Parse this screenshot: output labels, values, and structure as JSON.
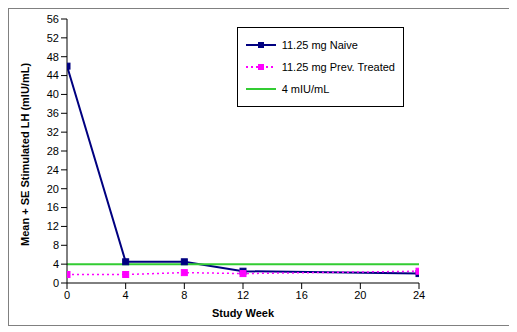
{
  "chart_data": {
    "type": "line",
    "x": [
      0,
      4,
      8,
      12,
      24
    ],
    "xlabel": "Study Week",
    "ylabel": "Mean + SE Stimulated LH (mIU/mL)",
    "xlim": [
      0,
      24
    ],
    "xticks": [
      0,
      4,
      8,
      12,
      16,
      20,
      24
    ],
    "ylim": [
      0,
      56
    ],
    "yticks": [
      0,
      4,
      8,
      12,
      16,
      20,
      24,
      28,
      32,
      36,
      40,
      44,
      48,
      52,
      56
    ],
    "grid": false,
    "legend": "upper right",
    "series": [
      {
        "name": "11.25 mg Naive",
        "color": "#000080",
        "marker": "square",
        "line_style": "solid",
        "values": [
          46,
          4.5,
          4.5,
          2.5,
          2.0
        ]
      },
      {
        "name": "11.25 mg Prev. Treated",
        "color": "#ff00ff",
        "marker": "square",
        "line_style": "dotted",
        "values": [
          1.8,
          1.8,
          2.2,
          2.0,
          2.5
        ]
      },
      {
        "name": "4 mIU/mL",
        "color": "#33cc33",
        "marker": "none",
        "line_style": "solid",
        "values": [
          4,
          4,
          4,
          4,
          4
        ]
      }
    ]
  }
}
